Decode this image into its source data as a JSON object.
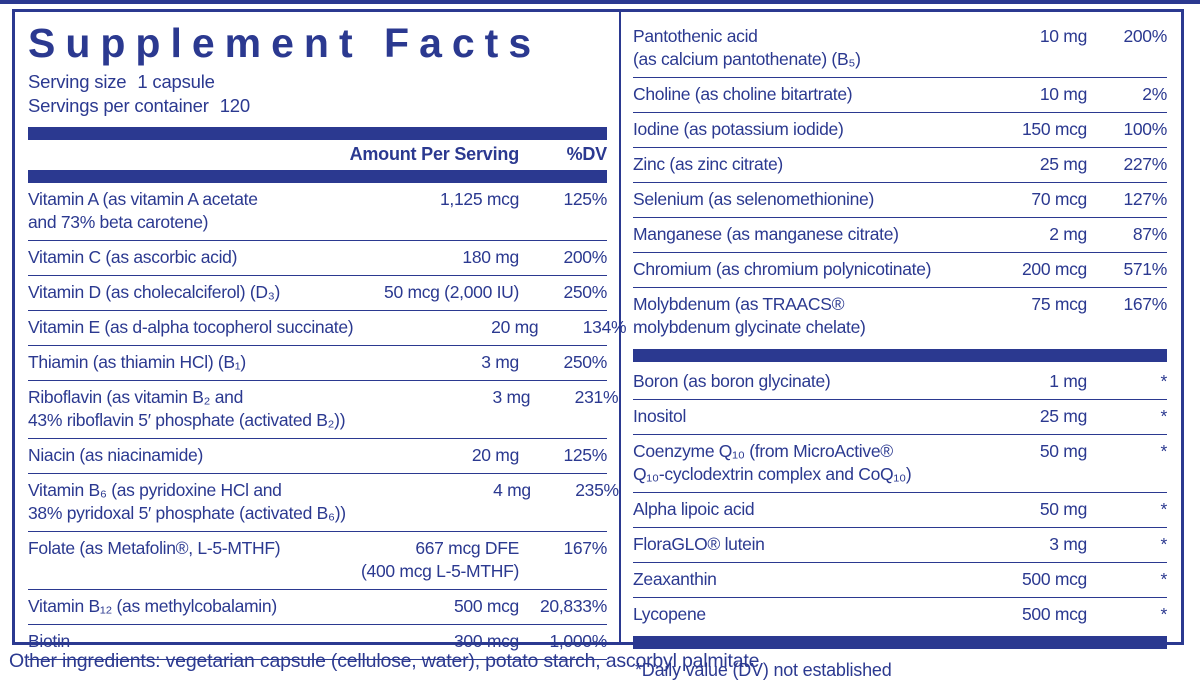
{
  "accent_color": "#2B3990",
  "title": "Supplement Facts",
  "serving_size": {
    "label": "Serving size",
    "value": "1 capsule"
  },
  "servings_per_container": {
    "label": "Servings per container",
    "value": "120"
  },
  "column_headers": {
    "amount": "Amount Per Serving",
    "dv": "%DV"
  },
  "left_rows": [
    {
      "name": "Vitamin A (as vitamin A acetate\nand 73% beta carotene)",
      "amount": "1,125 mcg",
      "dv": "125%"
    },
    {
      "name": "Vitamin C (as ascorbic acid)",
      "amount": "180 mg",
      "dv": "200%"
    },
    {
      "name": "Vitamin D (as cholecalciferol) (D₃)",
      "amount": "50 mcg (2,000 IU)",
      "dv": "250%"
    },
    {
      "name": "Vitamin E (as d-alpha tocopherol succinate)",
      "amount": "20 mg",
      "dv": "134%"
    },
    {
      "name": "Thiamin (as thiamin HCl) (B₁)",
      "amount": "3 mg",
      "dv": "250%"
    },
    {
      "name": "Riboflavin (as vitamin B₂ and\n43% riboflavin 5′ phosphate (activated B₂))",
      "amount": "3 mg",
      "dv": "231%"
    },
    {
      "name": "Niacin (as niacinamide)",
      "amount": "20 mg",
      "dv": "125%"
    },
    {
      "name": "Vitamin B₆ (as pyridoxine HCl and\n38% pyridoxal 5′ phosphate (activated B₆))",
      "amount": "4 mg",
      "dv": "235%"
    },
    {
      "name": "Folate (as Metafolin®, L-5-MTHF)",
      "amount": "667 mcg DFE\n(400 mcg L-5-MTHF)",
      "dv": "167%"
    },
    {
      "name": "Vitamin B₁₂ (as methylcobalamin)",
      "amount": "500 mcg",
      "dv": "20,833%"
    },
    {
      "name": "Biotin",
      "amount": "300 mcg",
      "dv": "1,000%"
    }
  ],
  "right_rows": [
    {
      "name": "Pantothenic acid\n(as calcium pantothenate) (B₅)",
      "amount": "10 mg",
      "dv": "200%"
    },
    {
      "name": "Choline (as choline bitartrate)",
      "amount": "10 mg",
      "dv": "2%"
    },
    {
      "name": "Iodine (as potassium iodide)",
      "amount": "150 mcg",
      "dv": "100%"
    },
    {
      "name": "Zinc (as zinc citrate)",
      "amount": "25 mg",
      "dv": "227%"
    },
    {
      "name": "Selenium (as selenomethionine)",
      "amount": "70 mcg",
      "dv": "127%"
    },
    {
      "name": "Manganese (as manganese citrate)",
      "amount": "2 mg",
      "dv": "87%"
    },
    {
      "name": "Chromium (as chromium polynicotinate)",
      "amount": "200 mcg",
      "dv": "571%"
    },
    {
      "name": "Molybdenum (as TRAACS®\nmolybdenum glycinate chelate)",
      "amount": "75 mcg",
      "dv": "167%"
    },
    {
      "bar": true
    },
    {
      "name": "Boron (as boron glycinate)",
      "amount": "1 mg",
      "dv": "*"
    },
    {
      "name": "Inositol",
      "amount": "25 mg",
      "dv": "*"
    },
    {
      "name": "Coenzyme Q₁₀ (from MicroActive®\nQ₁₀-cyclodextrin complex and CoQ₁₀)",
      "amount": "50 mg",
      "dv": "*"
    },
    {
      "name": "Alpha lipoic acid",
      "amount": "50 mg",
      "dv": "*"
    },
    {
      "name": "FloraGLO® lutein",
      "amount": "3 mg",
      "dv": "*"
    },
    {
      "name": "Zeaxanthin",
      "amount": "500 mcg",
      "dv": "*"
    },
    {
      "name": "Lycopene",
      "amount": "500 mcg",
      "dv": "*"
    },
    {
      "bar": true
    }
  ],
  "footnote": "*Daily value (DV) not established",
  "other_ingredients": "Other ingredients: vegetarian capsule (cellulose, water), potato starch, ascorbyl palmitate"
}
